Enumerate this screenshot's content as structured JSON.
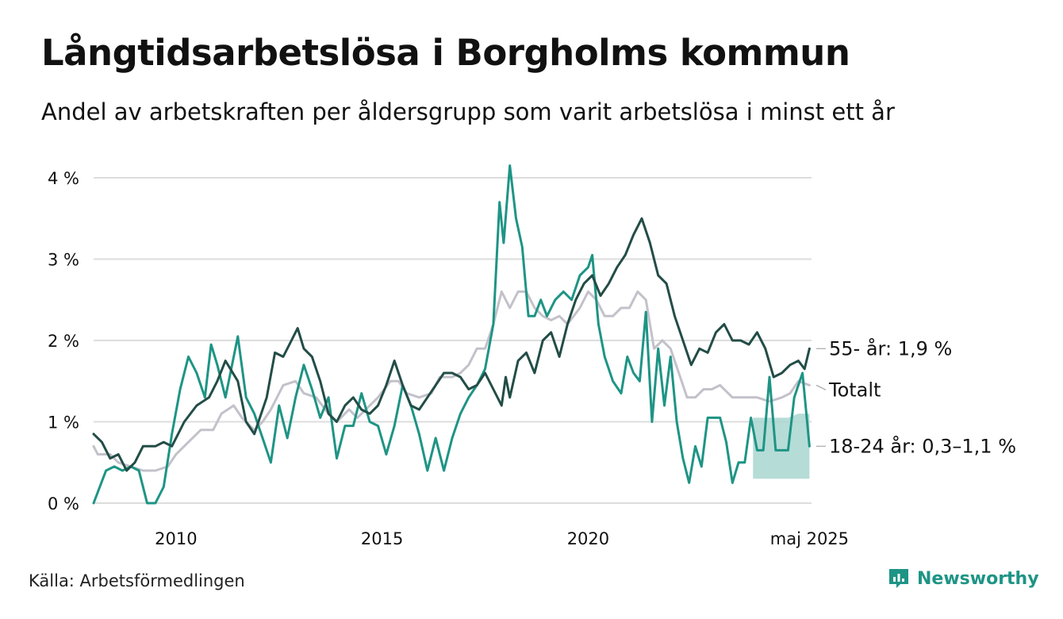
{
  "title": "Långtidsarbetslösa i Borgholms kommun",
  "subtitle": "Andel av arbetskraften per åldersgrupp som varit arbetslösa i minst ett år",
  "source": "Källa: Arbetsförmedlingen",
  "brand": "Newsworthy",
  "colors": {
    "senior": "#234d47",
    "young": "#1e9485",
    "total": "#c3c1ca",
    "band": "#a9d6d0",
    "grid": "#dddddd"
  },
  "chart_data": {
    "type": "line",
    "ylim": [
      0,
      4.2
    ],
    "xlim": [
      2008.0,
      2025.42
    ],
    "y_ticks": [
      {
        "v": 0,
        "label": "0 %"
      },
      {
        "v": 1,
        "label": "1 %"
      },
      {
        "v": 2,
        "label": "2 %"
      },
      {
        "v": 3,
        "label": "3 %"
      },
      {
        "v": 4,
        "label": "4 %"
      }
    ],
    "x_ticks": [
      {
        "v": 2010,
        "label": "2010"
      },
      {
        "v": 2015,
        "label": "2015"
      },
      {
        "v": 2020,
        "label": "2020"
      },
      {
        "v": 2025.37,
        "label": "maj 2025"
      }
    ],
    "series": [
      {
        "name": "Totalt",
        "end_label": "Totalt",
        "color_key": "total",
        "points": [
          [
            2008.0,
            0.7
          ],
          [
            2008.1,
            0.6
          ],
          [
            2008.4,
            0.6
          ],
          [
            2008.6,
            0.5
          ],
          [
            2008.9,
            0.45
          ],
          [
            2009.2,
            0.4
          ],
          [
            2009.5,
            0.4
          ],
          [
            2009.8,
            0.45
          ],
          [
            2010.0,
            0.6
          ],
          [
            2010.3,
            0.75
          ],
          [
            2010.6,
            0.9
          ],
          [
            2010.9,
            0.9
          ],
          [
            2011.1,
            1.1
          ],
          [
            2011.4,
            1.2
          ],
          [
            2011.6,
            1.05
          ],
          [
            2011.9,
            0.9
          ],
          [
            2012.1,
            1.0
          ],
          [
            2012.3,
            1.15
          ],
          [
            2012.6,
            1.45
          ],
          [
            2012.9,
            1.5
          ],
          [
            2013.1,
            1.35
          ],
          [
            2013.4,
            1.3
          ],
          [
            2013.7,
            1.1
          ],
          [
            2013.9,
            1.0
          ],
          [
            2014.2,
            1.15
          ],
          [
            2014.4,
            1.05
          ],
          [
            2014.6,
            1.15
          ],
          [
            2014.9,
            1.3
          ],
          [
            2015.2,
            1.5
          ],
          [
            2015.4,
            1.5
          ],
          [
            2015.6,
            1.35
          ],
          [
            2015.9,
            1.3
          ],
          [
            2016.2,
            1.35
          ],
          [
            2016.4,
            1.55
          ],
          [
            2016.7,
            1.55
          ],
          [
            2016.9,
            1.6
          ],
          [
            2017.1,
            1.7
          ],
          [
            2017.3,
            1.9
          ],
          [
            2017.5,
            1.9
          ],
          [
            2017.7,
            2.2
          ],
          [
            2017.9,
            2.6
          ],
          [
            2018.1,
            2.4
          ],
          [
            2018.3,
            2.6
          ],
          [
            2018.5,
            2.6
          ],
          [
            2018.7,
            2.4
          ],
          [
            2018.9,
            2.3
          ],
          [
            2019.1,
            2.25
          ],
          [
            2019.3,
            2.3
          ],
          [
            2019.5,
            2.2
          ],
          [
            2019.8,
            2.4
          ],
          [
            2020.0,
            2.6
          ],
          [
            2020.2,
            2.5
          ],
          [
            2020.4,
            2.3
          ],
          [
            2020.6,
            2.3
          ],
          [
            2020.8,
            2.4
          ],
          [
            2021.0,
            2.4
          ],
          [
            2021.2,
            2.6
          ],
          [
            2021.4,
            2.5
          ],
          [
            2021.6,
            1.9
          ],
          [
            2021.8,
            2.0
          ],
          [
            2022.0,
            1.9
          ],
          [
            2022.2,
            1.6
          ],
          [
            2022.4,
            1.3
          ],
          [
            2022.6,
            1.3
          ],
          [
            2022.8,
            1.4
          ],
          [
            2023.0,
            1.4
          ],
          [
            2023.2,
            1.45
          ],
          [
            2023.5,
            1.3
          ],
          [
            2023.8,
            1.3
          ],
          [
            2024.1,
            1.3
          ],
          [
            2024.4,
            1.25
          ],
          [
            2024.7,
            1.3
          ],
          [
            2024.9,
            1.35
          ],
          [
            2025.1,
            1.5
          ],
          [
            2025.37,
            1.45
          ]
        ]
      },
      {
        "name": "18-24 år",
        "end_label": "18-24 år: 0,3–1,1 %",
        "color_key": "young",
        "points": [
          [
            2008.0,
            0.0
          ],
          [
            2008.15,
            0.2
          ],
          [
            2008.3,
            0.4
          ],
          [
            2008.5,
            0.45
          ],
          [
            2008.7,
            0.4
          ],
          [
            2008.9,
            0.45
          ],
          [
            2009.1,
            0.4
          ],
          [
            2009.3,
            0.0
          ],
          [
            2009.5,
            0.0
          ],
          [
            2009.7,
            0.2
          ],
          [
            2009.9,
            0.85
          ],
          [
            2010.1,
            1.4
          ],
          [
            2010.3,
            1.8
          ],
          [
            2010.5,
            1.6
          ],
          [
            2010.7,
            1.3
          ],
          [
            2010.85,
            1.95
          ],
          [
            2011.0,
            1.7
          ],
          [
            2011.2,
            1.3
          ],
          [
            2011.5,
            2.05
          ],
          [
            2011.7,
            1.3
          ],
          [
            2011.9,
            1.1
          ],
          [
            2012.1,
            0.8
          ],
          [
            2012.3,
            0.5
          ],
          [
            2012.5,
            1.2
          ],
          [
            2012.7,
            0.8
          ],
          [
            2012.9,
            1.3
          ],
          [
            2013.1,
            1.7
          ],
          [
            2013.3,
            1.4
          ],
          [
            2013.5,
            1.05
          ],
          [
            2013.7,
            1.3
          ],
          [
            2013.9,
            0.55
          ],
          [
            2014.1,
            0.95
          ],
          [
            2014.3,
            0.95
          ],
          [
            2014.5,
            1.35
          ],
          [
            2014.7,
            1.0
          ],
          [
            2014.9,
            0.95
          ],
          [
            2015.1,
            0.6
          ],
          [
            2015.3,
            0.95
          ],
          [
            2015.5,
            1.45
          ],
          [
            2015.7,
            1.2
          ],
          [
            2015.9,
            0.85
          ],
          [
            2016.1,
            0.4
          ],
          [
            2016.3,
            0.8
          ],
          [
            2016.5,
            0.4
          ],
          [
            2016.7,
            0.8
          ],
          [
            2016.9,
            1.1
          ],
          [
            2017.1,
            1.3
          ],
          [
            2017.3,
            1.45
          ],
          [
            2017.5,
            1.65
          ],
          [
            2017.7,
            2.2
          ],
          [
            2017.85,
            3.7
          ],
          [
            2017.95,
            3.2
          ],
          [
            2018.1,
            4.15
          ],
          [
            2018.25,
            3.5
          ],
          [
            2018.4,
            3.15
          ],
          [
            2018.55,
            2.3
          ],
          [
            2018.7,
            2.3
          ],
          [
            2018.85,
            2.5
          ],
          [
            2019.0,
            2.3
          ],
          [
            2019.2,
            2.5
          ],
          [
            2019.4,
            2.6
          ],
          [
            2019.6,
            2.5
          ],
          [
            2019.8,
            2.8
          ],
          [
            2020.0,
            2.9
          ],
          [
            2020.1,
            3.05
          ],
          [
            2020.25,
            2.2
          ],
          [
            2020.4,
            1.8
          ],
          [
            2020.6,
            1.5
          ],
          [
            2020.8,
            1.35
          ],
          [
            2020.95,
            1.8
          ],
          [
            2021.1,
            1.6
          ],
          [
            2021.25,
            1.5
          ],
          [
            2021.4,
            2.35
          ],
          [
            2021.55,
            1.0
          ],
          [
            2021.7,
            1.9
          ],
          [
            2021.85,
            1.2
          ],
          [
            2022.0,
            1.8
          ],
          [
            2022.15,
            1.0
          ],
          [
            2022.3,
            0.55
          ],
          [
            2022.45,
            0.25
          ],
          [
            2022.6,
            0.7
          ],
          [
            2022.75,
            0.45
          ],
          [
            2022.9,
            1.05
          ],
          [
            2023.05,
            1.05
          ],
          [
            2023.2,
            1.05
          ],
          [
            2023.35,
            0.75
          ],
          [
            2023.5,
            0.25
          ],
          [
            2023.65,
            0.5
          ],
          [
            2023.8,
            0.5
          ],
          [
            2023.95,
            1.05
          ],
          [
            2024.1,
            0.65
          ],
          [
            2024.25,
            0.65
          ],
          [
            2024.4,
            1.55
          ],
          [
            2024.55,
            0.65
          ],
          [
            2024.7,
            0.65
          ],
          [
            2024.85,
            0.65
          ],
          [
            2025.0,
            1.3
          ],
          [
            2025.2,
            1.6
          ],
          [
            2025.37,
            0.7
          ]
        ]
      },
      {
        "name": "55- år",
        "end_label": "55- år: 1,9 %",
        "color_key": "senior",
        "points": [
          [
            2008.0,
            0.85
          ],
          [
            2008.2,
            0.75
          ],
          [
            2008.4,
            0.55
          ],
          [
            2008.6,
            0.6
          ],
          [
            2008.8,
            0.4
          ],
          [
            2009.0,
            0.5
          ],
          [
            2009.2,
            0.7
          ],
          [
            2009.5,
            0.7
          ],
          [
            2009.7,
            0.75
          ],
          [
            2009.9,
            0.7
          ],
          [
            2010.2,
            1.0
          ],
          [
            2010.5,
            1.2
          ],
          [
            2010.8,
            1.3
          ],
          [
            2011.0,
            1.5
          ],
          [
            2011.2,
            1.75
          ],
          [
            2011.5,
            1.5
          ],
          [
            2011.7,
            1.0
          ],
          [
            2011.9,
            0.85
          ],
          [
            2012.2,
            1.3
          ],
          [
            2012.4,
            1.85
          ],
          [
            2012.6,
            1.8
          ],
          [
            2012.8,
            2.0
          ],
          [
            2012.95,
            2.15
          ],
          [
            2013.1,
            1.9
          ],
          [
            2013.3,
            1.8
          ],
          [
            2013.5,
            1.5
          ],
          [
            2013.7,
            1.1
          ],
          [
            2013.9,
            1.0
          ],
          [
            2014.1,
            1.2
          ],
          [
            2014.3,
            1.3
          ],
          [
            2014.5,
            1.15
          ],
          [
            2014.7,
            1.1
          ],
          [
            2014.9,
            1.2
          ],
          [
            2015.1,
            1.45
          ],
          [
            2015.3,
            1.75
          ],
          [
            2015.5,
            1.45
          ],
          [
            2015.7,
            1.2
          ],
          [
            2015.9,
            1.15
          ],
          [
            2016.1,
            1.3
          ],
          [
            2016.3,
            1.45
          ],
          [
            2016.5,
            1.6
          ],
          [
            2016.7,
            1.6
          ],
          [
            2016.9,
            1.55
          ],
          [
            2017.1,
            1.4
          ],
          [
            2017.3,
            1.45
          ],
          [
            2017.5,
            1.6
          ],
          [
            2017.7,
            1.4
          ],
          [
            2017.9,
            1.2
          ],
          [
            2018.0,
            1.55
          ],
          [
            2018.1,
            1.3
          ],
          [
            2018.3,
            1.75
          ],
          [
            2018.5,
            1.85
          ],
          [
            2018.7,
            1.6
          ],
          [
            2018.9,
            2.0
          ],
          [
            2019.1,
            2.1
          ],
          [
            2019.3,
            1.8
          ],
          [
            2019.5,
            2.2
          ],
          [
            2019.7,
            2.5
          ],
          [
            2019.9,
            2.7
          ],
          [
            2020.1,
            2.8
          ],
          [
            2020.3,
            2.55
          ],
          [
            2020.5,
            2.7
          ],
          [
            2020.7,
            2.9
          ],
          [
            2020.9,
            3.05
          ],
          [
            2021.1,
            3.3
          ],
          [
            2021.3,
            3.5
          ],
          [
            2021.5,
            3.2
          ],
          [
            2021.7,
            2.8
          ],
          [
            2021.9,
            2.7
          ],
          [
            2022.1,
            2.3
          ],
          [
            2022.3,
            2.0
          ],
          [
            2022.5,
            1.7
          ],
          [
            2022.7,
            1.9
          ],
          [
            2022.9,
            1.85
          ],
          [
            2023.1,
            2.1
          ],
          [
            2023.3,
            2.2
          ],
          [
            2023.5,
            2.0
          ],
          [
            2023.7,
            2.0
          ],
          [
            2023.9,
            1.95
          ],
          [
            2024.1,
            2.1
          ],
          [
            2024.3,
            1.9
          ],
          [
            2024.5,
            1.55
          ],
          [
            2024.7,
            1.6
          ],
          [
            2024.9,
            1.7
          ],
          [
            2025.1,
            1.75
          ],
          [
            2025.25,
            1.65
          ],
          [
            2025.37,
            1.9
          ]
        ]
      }
    ],
    "band": {
      "series": "18-24 år",
      "points": [
        [
          2024.0,
          0.3,
          1.05
        ],
        [
          2024.45,
          0.3,
          1.05
        ],
        [
          2024.85,
          0.3,
          1.05
        ],
        [
          2025.1,
          0.3,
          1.1
        ],
        [
          2025.37,
          0.3,
          1.1
        ]
      ]
    }
  }
}
